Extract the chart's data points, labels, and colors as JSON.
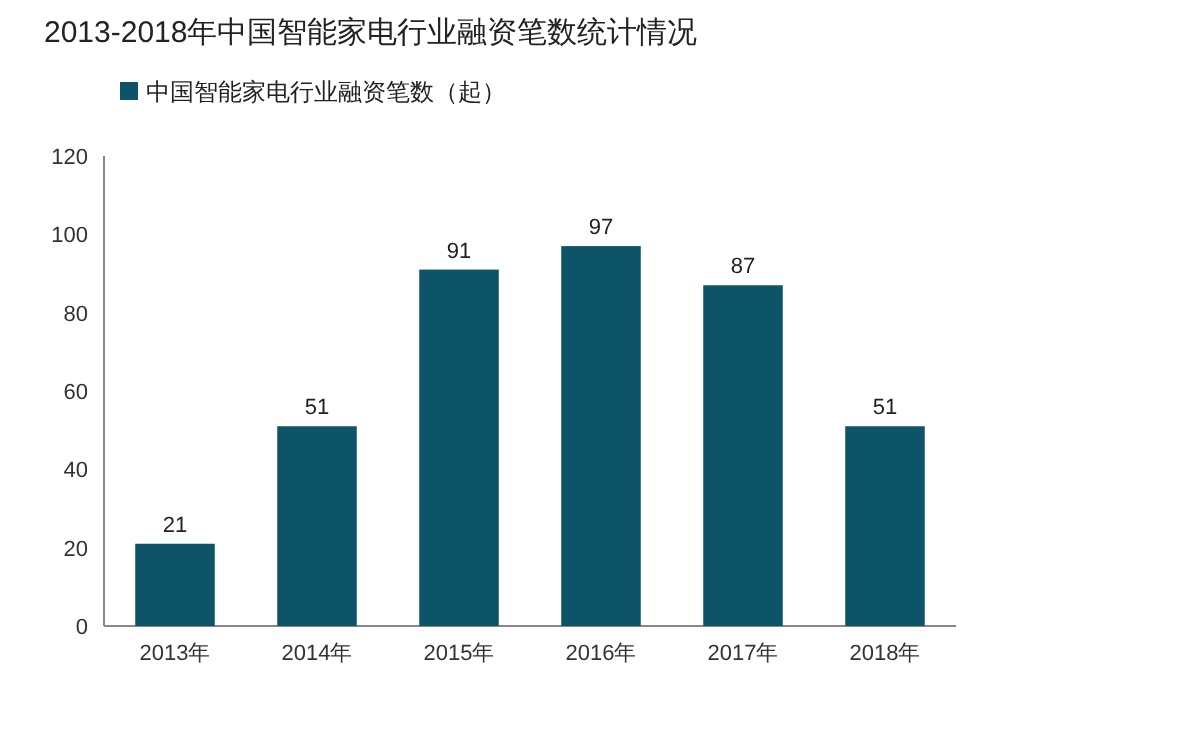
{
  "chart_data": {
    "type": "bar",
    "title": "2013-2018年中国智能家电行业融资笔数统计情况",
    "categories": [
      "2013年",
      "2014年",
      "2015年",
      "2016年",
      "2017年",
      "2018年"
    ],
    "series": [
      {
        "name": "中国智能家电行业融资笔数（起）",
        "color": "#0e5468",
        "values": [
          21,
          51,
          91,
          97,
          87,
          51
        ]
      }
    ],
    "ylim": [
      0,
      120
    ],
    "yticks": [
      0,
      20,
      40,
      60,
      80,
      100,
      120
    ],
    "data_labels": true,
    "legend": "top left",
    "grid": false
  }
}
